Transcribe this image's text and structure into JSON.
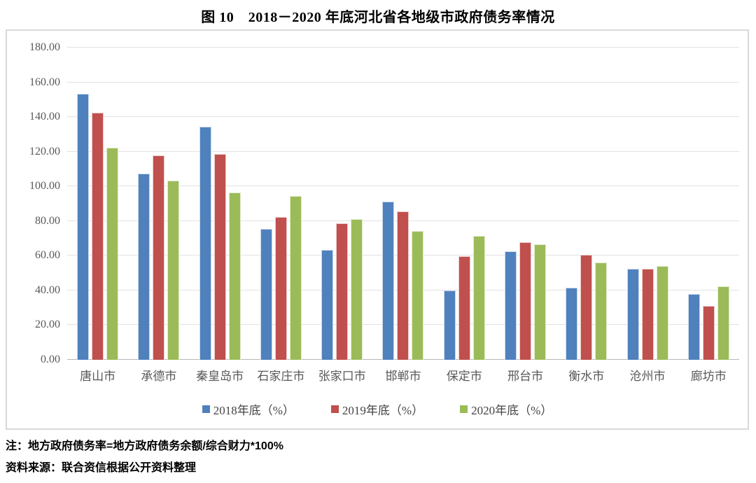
{
  "title": "图 10　2018－2020 年底河北省各地级市政府债务率情况",
  "notes": {
    "note_line": "注：地方政府债务率=地方政府债务余额/综合财力*100%",
    "source_line": "资料来源：联合资信根据公开资料整理"
  },
  "chart_data": {
    "type": "bar",
    "title": "图 10　2018－2020 年底河北省各地级市政府债务率情况",
    "categories": [
      "唐山市",
      "承德市",
      "秦皇岛市",
      "石家庄市",
      "张家口市",
      "邯郸市",
      "保定市",
      "邢台市",
      "衡水市",
      "沧州市",
      "廊坊市"
    ],
    "series": [
      {
        "name": "2018年底（%）",
        "color": "#4F81BD",
        "values": [
          153.2,
          107.5,
          134.4,
          75.3,
          63.2,
          91.3,
          40.1,
          62.6,
          41.4,
          52.6,
          38.0
        ]
      },
      {
        "name": "2019年底（%）",
        "color": "#C0504D",
        "values": [
          142.4,
          118.0,
          118.8,
          82.4,
          78.7,
          85.5,
          59.9,
          68.0,
          60.5,
          52.6,
          31.0
        ]
      },
      {
        "name": "2020年底（%）",
        "color": "#9BBB59",
        "values": [
          122.4,
          103.4,
          96.5,
          94.3,
          81.1,
          74.1,
          71.4,
          66.6,
          56.0,
          53.9,
          42.5
        ]
      }
    ],
    "xlabel": "",
    "ylabel": "",
    "ylim": [
      0,
      180
    ],
    "ytick_step": 20,
    "ytick_decimals": 2,
    "grid": true,
    "gridline_color": "#e2e2e2",
    "legend_position": "bottom"
  }
}
